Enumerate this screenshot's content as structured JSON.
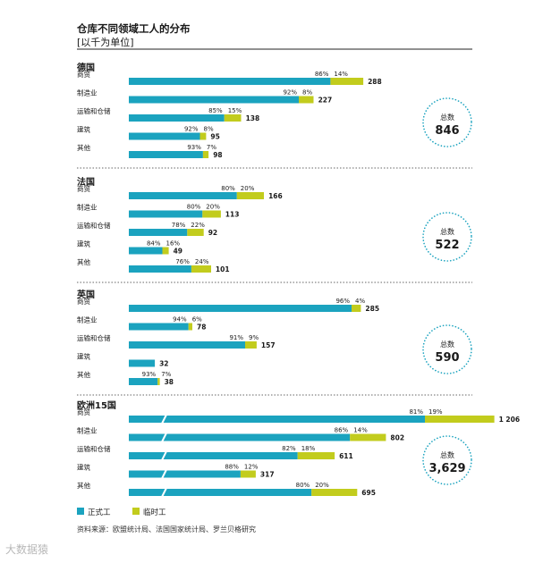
{
  "chart_data": {
    "type": "bar",
    "stacked": true,
    "orientation": "horizontal",
    "title": "仓库不同领域工人的分布",
    "subtitle": "[以千为单位]",
    "total_label": "总数",
    "colors": {
      "permanent": "#1ba3bf",
      "temporary": "#c2cc1d"
    },
    "legend": [
      {
        "key": "permanent",
        "label": "正式工"
      },
      {
        "key": "temporary",
        "label": "临时工"
      }
    ],
    "source": "资料来源：欧盟统计局、法国国家统计局、罗兰贝格研究",
    "groups": [
      {
        "name": "德国",
        "total": "846",
        "rows": [
          {
            "sector": "商贸",
            "perm_pct": "86%",
            "temp_pct": "14%",
            "perm": 86,
            "temp": 14,
            "total": 288
          },
          {
            "sector": "制造业",
            "perm_pct": "92%",
            "temp_pct": "8%",
            "perm": 92,
            "temp": 8,
            "total": 227
          },
          {
            "sector": "运输和仓储",
            "perm_pct": "85%",
            "temp_pct": "15%",
            "perm": 85,
            "temp": 15,
            "total": 138
          },
          {
            "sector": "建筑",
            "perm_pct": "92%",
            "temp_pct": "8%",
            "perm": 92,
            "temp": 8,
            "total": 95
          },
          {
            "sector": "其他",
            "perm_pct": "93%",
            "temp_pct": "7%",
            "perm": 93,
            "temp": 7,
            "total": 98
          }
        ]
      },
      {
        "name": "法国",
        "total": "522",
        "rows": [
          {
            "sector": "商贸",
            "perm_pct": "80%",
            "temp_pct": "20%",
            "perm": 80,
            "temp": 20,
            "total": 166
          },
          {
            "sector": "制造业",
            "perm_pct": "80%",
            "temp_pct": "20%",
            "perm": 80,
            "temp": 20,
            "total": 113
          },
          {
            "sector": "运输和仓储",
            "perm_pct": "78%",
            "temp_pct": "22%",
            "perm": 78,
            "temp": 22,
            "total": 92
          },
          {
            "sector": "建筑",
            "perm_pct": "84%",
            "temp_pct": "16%",
            "perm": 84,
            "temp": 16,
            "total": 49
          },
          {
            "sector": "其他",
            "perm_pct": "76%",
            "temp_pct": "24%",
            "perm": 76,
            "temp": 24,
            "total": 101
          }
        ]
      },
      {
        "name": "英国",
        "total": "590",
        "rows": [
          {
            "sector": "商贸",
            "perm_pct": "96%",
            "temp_pct": "4%",
            "perm": 96,
            "temp": 4,
            "total": 285
          },
          {
            "sector": "制造业",
            "perm_pct": "94%",
            "temp_pct": "6%",
            "perm": 94,
            "temp": 6,
            "total": 78
          },
          {
            "sector": "运输和仓储",
            "perm_pct": "91%",
            "temp_pct": "9%",
            "perm": 91,
            "temp": 9,
            "total": 157
          },
          {
            "sector": "建筑",
            "perm_pct": "",
            "temp_pct": "",
            "perm": 100,
            "temp": 0,
            "total": 32
          },
          {
            "sector": "其他",
            "perm_pct": "93%",
            "temp_pct": "7%",
            "perm": 93,
            "temp": 7,
            "total": 38
          }
        ]
      },
      {
        "name": "欧洲15国",
        "total": "3,629",
        "broken_axis": true,
        "rows": [
          {
            "sector": "商贸",
            "perm_pct": "81%",
            "temp_pct": "19%",
            "perm": 81,
            "temp": 19,
            "total": 1206,
            "total_label": "1 206"
          },
          {
            "sector": "制造业",
            "perm_pct": "86%",
            "temp_pct": "14%",
            "perm": 86,
            "temp": 14,
            "total": 802
          },
          {
            "sector": "运输和仓储",
            "perm_pct": "82%",
            "temp_pct": "18%",
            "perm": 82,
            "temp": 18,
            "total": 611
          },
          {
            "sector": "建筑",
            "perm_pct": "88%",
            "temp_pct": "12%",
            "perm": 88,
            "temp": 12,
            "total": 317
          },
          {
            "sector": "其他",
            "perm_pct": "80%",
            "temp_pct": "20%",
            "perm": 80,
            "temp": 20,
            "total": 695
          }
        ]
      }
    ]
  },
  "watermark": "大数据猿"
}
